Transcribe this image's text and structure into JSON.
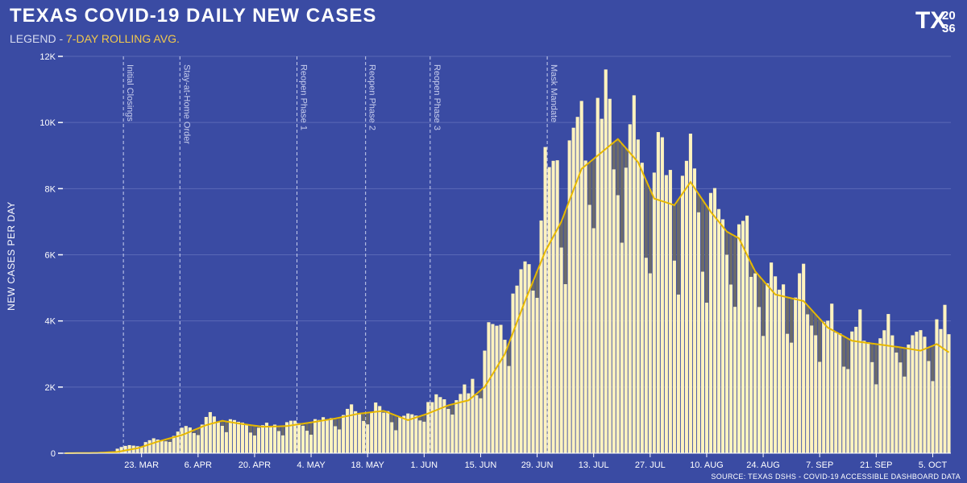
{
  "header": {
    "title": "TEXAS COVID-19 DAILY NEW CASES",
    "legend_prefix": "LEGEND - ",
    "legend_label": "7-DAY ROLLING AVG."
  },
  "logo": {
    "tx": "TX",
    "year_top": "20",
    "year_bottom": "36"
  },
  "source": "SOURCE: TEXAS DSHS - COVID-19 ACCESSIBLE DASHBOARD DATA",
  "colors": {
    "background": "#3a4ba3",
    "bar": "#fff3bf",
    "bar_stroke": "#e6d88f",
    "deficit": "#6b6b6b",
    "avg_line": "#e6b800",
    "grid": "#5a69b6"
  },
  "chart_data": {
    "type": "bar",
    "title": "TEXAS COVID-19 DAILY NEW CASES",
    "ylabel": "NEW CASES PER DAY",
    "ylim": [
      0,
      12000
    ],
    "yticks": [
      0,
      2000,
      4000,
      6000,
      8000,
      10000,
      12000
    ],
    "ytick_labels": [
      "0",
      "2K",
      "4K",
      "6K",
      "8K",
      "10K",
      "12K"
    ],
    "x_start": "2020-03-04",
    "x_end": "2020-10-09",
    "xtick_dates": [
      "2020-03-23",
      "2020-04-06",
      "2020-04-20",
      "2020-05-04",
      "2020-05-18",
      "2020-06-01",
      "2020-06-15",
      "2020-06-29",
      "2020-07-13",
      "2020-07-27",
      "2020-08-10",
      "2020-08-24",
      "2020-09-07",
      "2020-09-21",
      "2020-10-05"
    ],
    "xtick_labels": [
      "23. MAR",
      "6. APR",
      "20. APR",
      "4. MAY",
      "18. MAY",
      "1. JUN",
      "15. JUN",
      "29. JUN",
      "13. JUL",
      "27. JUL",
      "10. AUG",
      "24. AUG",
      "7. SEP",
      "21. SEP",
      "5. OCT"
    ],
    "grid": true,
    "annotations": [
      {
        "date": "2020-03-19",
        "label": "Initial Closings"
      },
      {
        "date": "2020-04-02",
        "label": "Stay-at-Home Order"
      },
      {
        "date": "2020-05-01",
        "label": "Reopen Phase 1"
      },
      {
        "date": "2020-05-18",
        "label": "Reopen Phase 2"
      },
      {
        "date": "2020-06-03",
        "label": "Reopen Phase 3"
      },
      {
        "date": "2020-07-02",
        "label": "Mask Mandate"
      }
    ],
    "series": [
      {
        "name": "7-DAY ROLLING AVG.",
        "type": "line",
        "keypoints": [
          [
            "2020-03-04",
            0
          ],
          [
            "2020-03-12",
            10
          ],
          [
            "2020-03-17",
            40
          ],
          [
            "2020-03-22",
            150
          ],
          [
            "2020-03-27",
            350
          ],
          [
            "2020-04-02",
            550
          ],
          [
            "2020-04-08",
            850
          ],
          [
            "2020-04-12",
            980
          ],
          [
            "2020-04-16",
            900
          ],
          [
            "2020-04-22",
            800
          ],
          [
            "2020-04-28",
            820
          ],
          [
            "2020-05-05",
            950
          ],
          [
            "2020-05-10",
            1050
          ],
          [
            "2020-05-16",
            1200
          ],
          [
            "2020-05-22",
            1280
          ],
          [
            "2020-05-28",
            1000
          ],
          [
            "2020-06-02",
            1200
          ],
          [
            "2020-06-07",
            1450
          ],
          [
            "2020-06-12",
            1600
          ],
          [
            "2020-06-16",
            2000
          ],
          [
            "2020-06-21",
            3000
          ],
          [
            "2020-06-26",
            4600
          ],
          [
            "2020-07-01",
            6100
          ],
          [
            "2020-07-05",
            7000
          ],
          [
            "2020-07-10",
            8600
          ],
          [
            "2020-07-14",
            9000
          ],
          [
            "2020-07-19",
            9500
          ],
          [
            "2020-07-24",
            8800
          ],
          [
            "2020-07-28",
            7700
          ],
          [
            "2020-08-02",
            7500
          ],
          [
            "2020-08-06",
            8200
          ],
          [
            "2020-08-11",
            7300
          ],
          [
            "2020-08-15",
            6700
          ],
          [
            "2020-08-18",
            6500
          ],
          [
            "2020-08-22",
            5500
          ],
          [
            "2020-08-27",
            4800
          ],
          [
            "2020-09-03",
            4600
          ],
          [
            "2020-09-09",
            3800
          ],
          [
            "2020-09-15",
            3400
          ],
          [
            "2020-09-21",
            3300
          ],
          [
            "2020-09-27",
            3200
          ],
          [
            "2020-10-02",
            3100
          ],
          [
            "2020-10-06",
            3300
          ],
          [
            "2020-10-09",
            3050
          ]
        ]
      },
      {
        "name": "daily new cases",
        "type": "bar",
        "keypoints": [
          [
            "2020-03-04",
            0
          ],
          [
            "2020-03-14",
            20
          ],
          [
            "2020-03-19",
            200
          ],
          [
            "2020-03-23",
            300
          ],
          [
            "2020-03-28",
            450
          ],
          [
            "2020-04-02",
            700
          ],
          [
            "2020-04-08",
            1000
          ],
          [
            "2020-04-12",
            1050
          ],
          [
            "2020-04-16",
            900
          ],
          [
            "2020-04-22",
            850
          ],
          [
            "2020-04-28",
            900
          ],
          [
            "2020-05-05",
            1000
          ],
          [
            "2020-05-10",
            1150
          ],
          [
            "2020-05-16",
            1400
          ],
          [
            "2020-05-22",
            1350
          ],
          [
            "2020-05-28",
            1100
          ],
          [
            "2020-06-02",
            1500
          ],
          [
            "2020-06-07",
            1700
          ],
          [
            "2020-06-12",
            1900
          ],
          [
            "2020-06-16",
            3200
          ],
          [
            "2020-06-21",
            4200
          ],
          [
            "2020-06-26",
            5800
          ],
          [
            "2020-07-01",
            7800
          ],
          [
            "2020-07-05",
            9000
          ],
          [
            "2020-07-10",
            9800
          ],
          [
            "2020-07-14",
            10500
          ],
          [
            "2020-07-19",
            9800
          ],
          [
            "2020-07-24",
            9000
          ],
          [
            "2020-07-28",
            8200
          ],
          [
            "2020-08-02",
            8600
          ],
          [
            "2020-08-06",
            8000
          ],
          [
            "2020-08-11",
            7500
          ],
          [
            "2020-08-15",
            6900
          ],
          [
            "2020-08-18",
            6800
          ],
          [
            "2020-08-22",
            5600
          ],
          [
            "2020-08-27",
            5100
          ],
          [
            "2020-09-03",
            4800
          ],
          [
            "2020-09-09",
            4000
          ],
          [
            "2020-09-15",
            3700
          ],
          [
            "2020-09-21",
            3600
          ],
          [
            "2020-09-27",
            3400
          ],
          [
            "2020-10-02",
            3500
          ],
          [
            "2020-10-06",
            3800
          ],
          [
            "2020-10-09",
            3700
          ]
        ]
      }
    ]
  }
}
